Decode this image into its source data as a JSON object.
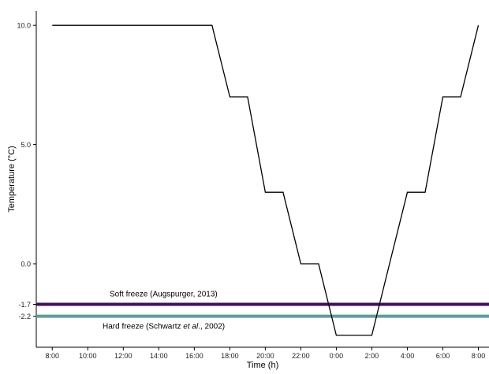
{
  "chart_data": {
    "type": "line",
    "xlabel": "Time (h)",
    "ylabel": "Temperature (°C)",
    "x_ticks": [
      "8:00",
      "10:00",
      "12:00",
      "14:00",
      "16:00",
      "18:00",
      "20:00",
      "22:00",
      "0:00",
      "2:00",
      "4:00",
      "6:00",
      "8:00"
    ],
    "x_tick_hours": [
      0,
      2,
      4,
      6,
      8,
      10,
      12,
      14,
      16,
      18,
      20,
      22,
      24
    ],
    "y_ticks": [
      "10.0",
      "5.0",
      "0.0",
      "-1.7",
      "-2.2"
    ],
    "y_tick_values": [
      10.0,
      5.0,
      0.0,
      -1.7,
      -2.2
    ],
    "xlim_hours": [
      -0.9,
      24.6
    ],
    "ylim": [
      -3.5,
      10.6
    ],
    "grid": false,
    "series": [
      {
        "name": "",
        "color": "#000000",
        "x": [
          "8:00",
          "17:00",
          "18:00",
          "19:00",
          "20:00",
          "21:00",
          "22:00",
          "23:00",
          "0:00",
          "2:00",
          "3:00",
          "4:00",
          "5:00",
          "6:00",
          "7:00",
          "8:00"
        ],
        "x_hours": [
          0,
          9,
          10,
          11,
          12,
          13,
          14,
          15,
          16,
          18,
          19,
          20,
          21,
          22,
          23,
          24
        ],
        "y": [
          10,
          10,
          7,
          7,
          3,
          3,
          0,
          0,
          -3,
          -3,
          0,
          3,
          3,
          7,
          7,
          10
        ]
      }
    ],
    "reference_lines": [
      {
        "label": "Soft freeze (Augspurger, 2013)",
        "value": -1.7,
        "color": "#3f0f5e",
        "label_position": "above"
      },
      {
        "label_parts": [
          "Hard freeze (Schwartz ",
          "et al",
          "., 2002)"
        ],
        "value": -2.2,
        "color": "#5f9d98",
        "label_position": "below"
      }
    ]
  }
}
